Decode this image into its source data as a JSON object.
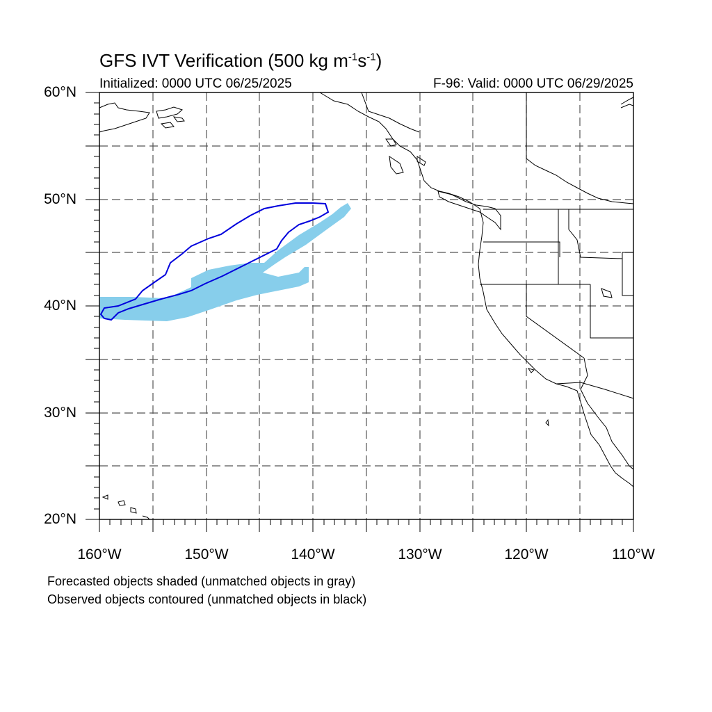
{
  "title": {
    "main": "GFS IVT Verification (500 kg m",
    "sup1": "-1",
    "mid": "s",
    "sup2": "-1",
    "end": ")"
  },
  "subtitle_left": "Initialized: 0000 UTC 06/25/2025",
  "subtitle_right": "F-96: Valid: 0000 UTC 06/29/2025",
  "lat_labels": [
    "60°N",
    "50°N",
    "40°N",
    "30°N",
    "20°N"
  ],
  "lon_labels": [
    "160°W",
    "150°W",
    "140°W",
    "130°W",
    "120°W",
    "110°W"
  ],
  "notes": [
    "Forecasted objects shaded (unmatched objects in gray)",
    "Observed objects contoured (unmatched objects in black)"
  ],
  "map": {
    "lon_range": [
      -160,
      -110
    ],
    "lat_range": [
      20,
      60
    ],
    "grid_spacing_deg": 5,
    "grid_style": "dashed",
    "forecast_fill_color": "#87ceeb",
    "observed_contour_color": "#0000dd",
    "coastline_color": "#000000"
  }
}
